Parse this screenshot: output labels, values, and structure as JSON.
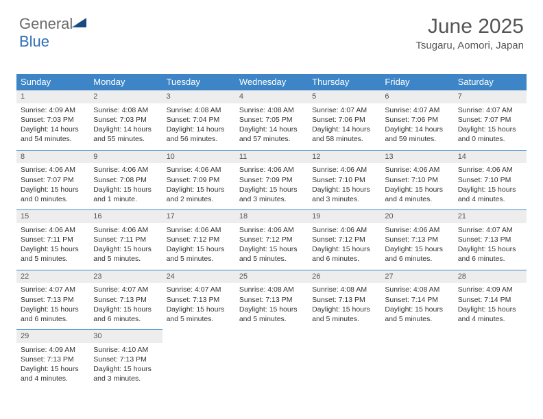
{
  "logo": {
    "text1": "General",
    "text2": "Blue"
  },
  "title": "June 2025",
  "subtitle": "Tsugaru, Aomori, Japan",
  "colors": {
    "header_bg": "#3d85c6",
    "header_text": "#ffffff",
    "daynum_bg": "#ededed",
    "border": "#3d85c6",
    "text": "#333333"
  },
  "weekdays": [
    "Sunday",
    "Monday",
    "Tuesday",
    "Wednesday",
    "Thursday",
    "Friday",
    "Saturday"
  ],
  "days": [
    {
      "n": "1",
      "sr": "4:09 AM",
      "ss": "7:03 PM",
      "dl": "14 hours and 54 minutes."
    },
    {
      "n": "2",
      "sr": "4:08 AM",
      "ss": "7:03 PM",
      "dl": "14 hours and 55 minutes."
    },
    {
      "n": "3",
      "sr": "4:08 AM",
      "ss": "7:04 PM",
      "dl": "14 hours and 56 minutes."
    },
    {
      "n": "4",
      "sr": "4:08 AM",
      "ss": "7:05 PM",
      "dl": "14 hours and 57 minutes."
    },
    {
      "n": "5",
      "sr": "4:07 AM",
      "ss": "7:06 PM",
      "dl": "14 hours and 58 minutes."
    },
    {
      "n": "6",
      "sr": "4:07 AM",
      "ss": "7:06 PM",
      "dl": "14 hours and 59 minutes."
    },
    {
      "n": "7",
      "sr": "4:07 AM",
      "ss": "7:07 PM",
      "dl": "15 hours and 0 minutes."
    },
    {
      "n": "8",
      "sr": "4:06 AM",
      "ss": "7:07 PM",
      "dl": "15 hours and 0 minutes."
    },
    {
      "n": "9",
      "sr": "4:06 AM",
      "ss": "7:08 PM",
      "dl": "15 hours and 1 minute."
    },
    {
      "n": "10",
      "sr": "4:06 AM",
      "ss": "7:09 PM",
      "dl": "15 hours and 2 minutes."
    },
    {
      "n": "11",
      "sr": "4:06 AM",
      "ss": "7:09 PM",
      "dl": "15 hours and 3 minutes."
    },
    {
      "n": "12",
      "sr": "4:06 AM",
      "ss": "7:10 PM",
      "dl": "15 hours and 3 minutes."
    },
    {
      "n": "13",
      "sr": "4:06 AM",
      "ss": "7:10 PM",
      "dl": "15 hours and 4 minutes."
    },
    {
      "n": "14",
      "sr": "4:06 AM",
      "ss": "7:10 PM",
      "dl": "15 hours and 4 minutes."
    },
    {
      "n": "15",
      "sr": "4:06 AM",
      "ss": "7:11 PM",
      "dl": "15 hours and 5 minutes."
    },
    {
      "n": "16",
      "sr": "4:06 AM",
      "ss": "7:11 PM",
      "dl": "15 hours and 5 minutes."
    },
    {
      "n": "17",
      "sr": "4:06 AM",
      "ss": "7:12 PM",
      "dl": "15 hours and 5 minutes."
    },
    {
      "n": "18",
      "sr": "4:06 AM",
      "ss": "7:12 PM",
      "dl": "15 hours and 5 minutes."
    },
    {
      "n": "19",
      "sr": "4:06 AM",
      "ss": "7:12 PM",
      "dl": "15 hours and 6 minutes."
    },
    {
      "n": "20",
      "sr": "4:06 AM",
      "ss": "7:13 PM",
      "dl": "15 hours and 6 minutes."
    },
    {
      "n": "21",
      "sr": "4:07 AM",
      "ss": "7:13 PM",
      "dl": "15 hours and 6 minutes."
    },
    {
      "n": "22",
      "sr": "4:07 AM",
      "ss": "7:13 PM",
      "dl": "15 hours and 6 minutes."
    },
    {
      "n": "23",
      "sr": "4:07 AM",
      "ss": "7:13 PM",
      "dl": "15 hours and 6 minutes."
    },
    {
      "n": "24",
      "sr": "4:07 AM",
      "ss": "7:13 PM",
      "dl": "15 hours and 5 minutes."
    },
    {
      "n": "25",
      "sr": "4:08 AM",
      "ss": "7:13 PM",
      "dl": "15 hours and 5 minutes."
    },
    {
      "n": "26",
      "sr": "4:08 AM",
      "ss": "7:13 PM",
      "dl": "15 hours and 5 minutes."
    },
    {
      "n": "27",
      "sr": "4:08 AM",
      "ss": "7:14 PM",
      "dl": "15 hours and 5 minutes."
    },
    {
      "n": "28",
      "sr": "4:09 AM",
      "ss": "7:14 PM",
      "dl": "15 hours and 4 minutes."
    },
    {
      "n": "29",
      "sr": "4:09 AM",
      "ss": "7:13 PM",
      "dl": "15 hours and 4 minutes."
    },
    {
      "n": "30",
      "sr": "4:10 AM",
      "ss": "7:13 PM",
      "dl": "15 hours and 3 minutes."
    }
  ],
  "labels": {
    "sunrise": "Sunrise: ",
    "sunset": "Sunset: ",
    "daylight": "Daylight: "
  }
}
